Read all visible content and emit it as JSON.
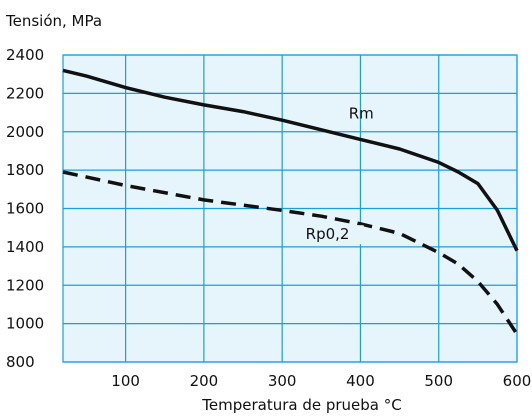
{
  "chart_data": {
    "type": "line",
    "ylabel": "Tensión, MPa",
    "xlabel": "Temperatura de prueba °C",
    "xlim": [
      20,
      600
    ],
    "ylim": [
      800,
      2400
    ],
    "x_ticks": [
      100,
      200,
      300,
      400,
      500,
      600
    ],
    "y_ticks": [
      800,
      1000,
      1200,
      1400,
      1600,
      1800,
      2000,
      2200,
      2400
    ],
    "grid": true,
    "colors": {
      "background": "#e6f4fb",
      "grid": "#1a9fdc",
      "line": "#111111"
    },
    "series": [
      {
        "name": "Rm",
        "style": "solid",
        "points": [
          [
            20,
            2320
          ],
          [
            50,
            2290
          ],
          [
            100,
            2230
          ],
          [
            150,
            2180
          ],
          [
            200,
            2140
          ],
          [
            250,
            2105
          ],
          [
            300,
            2060
          ],
          [
            350,
            2010
          ],
          [
            400,
            1960
          ],
          [
            450,
            1910
          ],
          [
            500,
            1840
          ],
          [
            525,
            1790
          ],
          [
            550,
            1730
          ],
          [
            575,
            1590
          ],
          [
            600,
            1380
          ]
        ]
      },
      {
        "name": "Rp0,2",
        "style": "dashed",
        "points": [
          [
            20,
            1790
          ],
          [
            100,
            1720
          ],
          [
            200,
            1645
          ],
          [
            300,
            1590
          ],
          [
            350,
            1560
          ],
          [
            400,
            1520
          ],
          [
            450,
            1470
          ],
          [
            500,
            1370
          ],
          [
            525,
            1310
          ],
          [
            550,
            1220
          ],
          [
            575,
            1100
          ],
          [
            600,
            945
          ]
        ]
      }
    ]
  }
}
